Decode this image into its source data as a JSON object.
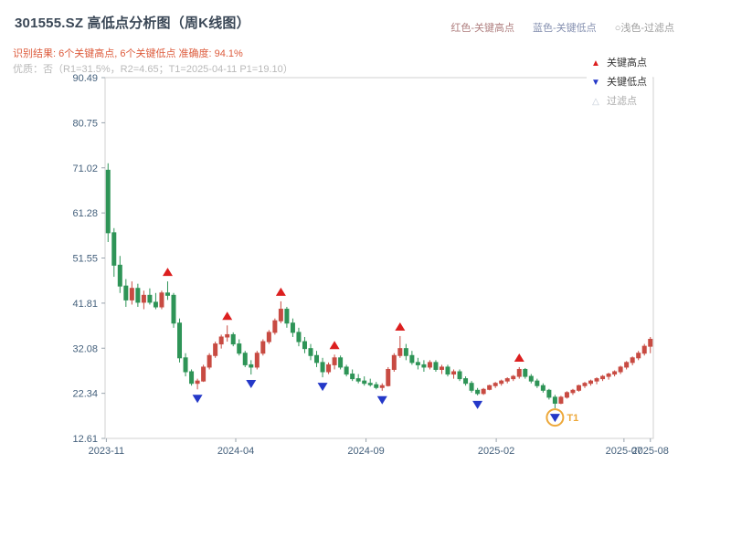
{
  "header": {
    "title": "301555.SZ 高低点分析图（周K线图）",
    "legend_top": [
      {
        "label": "红色-关键高点",
        "color": "#b08080"
      },
      {
        "label": "蓝色-关键低点",
        "color": "#8590b0"
      },
      {
        "label": "○浅色-过滤点",
        "color": "#9e9e9e"
      }
    ],
    "result_line": "识别结果: 6个关键高点, 6个关键低点  准确度: 94.1%",
    "quality_line": "优质：否（R1=31.5%，R2=4.65；T1=2025-04-11 P1=19.10）"
  },
  "chart_legend": {
    "items": [
      {
        "label": "关键高点",
        "marker": "▲",
        "color": "#dc1f1f"
      },
      {
        "label": "关键低点",
        "marker": "▼",
        "color": "#2438c8"
      },
      {
        "label": "过滤点",
        "marker": "△",
        "color": "#c2cbd6"
      }
    ]
  },
  "chart_data": {
    "type": "candlestick",
    "title": "301555.SZ 高低点分析图（周K线图）",
    "ylim": [
      12.61,
      90.49
    ],
    "y_ticks": [
      90.49,
      80.75,
      71.02,
      61.28,
      51.55,
      41.81,
      32.08,
      22.34,
      12.61
    ],
    "x_ticks": [
      "2023-11",
      "2024-04",
      "2024-09",
      "2025-02",
      "2025-07",
      "2025-08"
    ],
    "grid": false,
    "colors": {
      "up": "#c84b42",
      "down": "#2e9457",
      "key_high": "#dc1f1f",
      "key_low": "#2438c8",
      "filtered": "#c2cbd6",
      "t1": "#eda83a",
      "axis": "#44607c",
      "border": "#d0d0d0"
    },
    "columns": [
      "date",
      "open",
      "high",
      "low",
      "close"
    ],
    "candles": [
      [
        "2023-11-03",
        70.5,
        72.0,
        55.0,
        57.0
      ],
      [
        "2023-11-10",
        57.0,
        58.0,
        47.5,
        50.0
      ],
      [
        "2023-11-17",
        50.0,
        52.0,
        44.0,
        45.5
      ],
      [
        "2023-11-24",
        45.5,
        47.0,
        41.0,
        42.5
      ],
      [
        "2023-12-01",
        42.5,
        46.5,
        41.5,
        45.0
      ],
      [
        "2023-12-08",
        45.0,
        46.0,
        41.0,
        42.0
      ],
      [
        "2023-12-15",
        42.0,
        44.5,
        40.5,
        43.5
      ],
      [
        "2023-12-22",
        43.5,
        45.0,
        41.5,
        42.0
      ],
      [
        "2023-12-29",
        42.0,
        44.0,
        40.5,
        41.0
      ],
      [
        "2024-01-05",
        41.0,
        44.5,
        40.5,
        44.0
      ],
      [
        "2024-01-12",
        44.0,
        46.5,
        42.5,
        43.5
      ],
      [
        "2024-01-19",
        43.5,
        44.0,
        36.5,
        37.5
      ],
      [
        "2024-01-26",
        37.5,
        38.5,
        29.0,
        30.0
      ],
      [
        "2024-02-02",
        30.0,
        31.0,
        26.0,
        27.0
      ],
      [
        "2024-02-09",
        27.0,
        27.5,
        24.0,
        24.5
      ],
      [
        "2024-02-16",
        24.5,
        25.5,
        23.2,
        25.0
      ],
      [
        "2024-02-23",
        25.0,
        28.5,
        24.8,
        28.0
      ],
      [
        "2024-03-01",
        28.0,
        31.0,
        27.5,
        30.5
      ],
      [
        "2024-03-08",
        30.5,
        33.5,
        30.0,
        33.0
      ],
      [
        "2024-03-15",
        33.0,
        35.0,
        32.0,
        34.5
      ],
      [
        "2024-03-22",
        34.5,
        37.0,
        33.5,
        35.0
      ],
      [
        "2024-03-29",
        35.0,
        35.5,
        32.5,
        33.0
      ],
      [
        "2024-04-05",
        33.0,
        34.0,
        30.5,
        31.0
      ],
      [
        "2024-04-12",
        31.0,
        31.5,
        28.0,
        28.5
      ],
      [
        "2024-04-19",
        28.5,
        29.5,
        26.4,
        28.0
      ],
      [
        "2024-04-26",
        28.0,
        31.5,
        27.5,
        31.0
      ],
      [
        "2024-05-03",
        31.0,
        34.0,
        30.5,
        33.5
      ],
      [
        "2024-05-10",
        33.5,
        36.0,
        33.0,
        35.5
      ],
      [
        "2024-05-17",
        35.5,
        38.5,
        35.0,
        38.0
      ],
      [
        "2024-05-24",
        38.0,
        42.2,
        37.5,
        40.5
      ],
      [
        "2024-05-31",
        40.5,
        41.0,
        36.5,
        37.5
      ],
      [
        "2024-06-07",
        37.5,
        38.5,
        34.5,
        35.5
      ],
      [
        "2024-06-14",
        35.5,
        36.5,
        32.5,
        33.5
      ],
      [
        "2024-06-21",
        33.5,
        34.5,
        31.0,
        32.0
      ],
      [
        "2024-06-28",
        32.0,
        33.0,
        29.5,
        30.5
      ],
      [
        "2024-07-05",
        30.5,
        31.5,
        28.0,
        29.0
      ],
      [
        "2024-07-12",
        29.0,
        30.0,
        25.8,
        27.0
      ],
      [
        "2024-07-19",
        27.0,
        29.0,
        26.5,
        28.5
      ],
      [
        "2024-07-26",
        28.5,
        30.7,
        27.5,
        30.0
      ],
      [
        "2024-08-02",
        30.0,
        30.5,
        27.5,
        28.0
      ],
      [
        "2024-08-09",
        28.0,
        28.5,
        26.0,
        26.5
      ],
      [
        "2024-08-16",
        26.5,
        27.5,
        25.0,
        25.5
      ],
      [
        "2024-08-23",
        25.5,
        26.5,
        24.5,
        25.0
      ],
      [
        "2024-08-30",
        25.0,
        26.0,
        24.0,
        24.5
      ],
      [
        "2024-09-06",
        24.5,
        25.5,
        23.8,
        24.2
      ],
      [
        "2024-09-13",
        24.2,
        24.8,
        23.2,
        23.6
      ],
      [
        "2024-09-20",
        23.6,
        24.5,
        22.9,
        24.0
      ],
      [
        "2024-09-27",
        24.0,
        28.0,
        23.8,
        27.5
      ],
      [
        "2024-10-04",
        27.5,
        31.0,
        27.0,
        30.5
      ],
      [
        "2024-10-11",
        30.5,
        34.7,
        30.0,
        32.0
      ],
      [
        "2024-10-18",
        32.0,
        33.0,
        29.5,
        30.5
      ],
      [
        "2024-10-25",
        30.5,
        31.5,
        28.5,
        29.0
      ],
      [
        "2024-11-01",
        29.0,
        30.0,
        27.5,
        28.5
      ],
      [
        "2024-11-08",
        28.5,
        29.5,
        27.0,
        28.0
      ],
      [
        "2024-11-15",
        28.0,
        29.5,
        27.5,
        29.0
      ],
      [
        "2024-11-22",
        29.0,
        29.5,
        27.0,
        27.5
      ],
      [
        "2024-11-29",
        27.5,
        28.5,
        26.5,
        28.0
      ],
      [
        "2024-12-06",
        28.0,
        28.5,
        26.0,
        26.5
      ],
      [
        "2024-12-13",
        26.5,
        27.5,
        25.5,
        27.0
      ],
      [
        "2024-12-20",
        27.0,
        27.5,
        25.0,
        25.5
      ],
      [
        "2024-12-27",
        25.5,
        26.0,
        24.0,
        24.5
      ],
      [
        "2025-01-03",
        24.5,
        25.0,
        22.5,
        23.0
      ],
      [
        "2025-01-10",
        23.0,
        23.5,
        21.9,
        22.3
      ],
      [
        "2025-01-17",
        22.3,
        23.5,
        22.0,
        23.2
      ],
      [
        "2025-01-24",
        23.2,
        24.2,
        23.0,
        24.0
      ],
      [
        "2025-01-31",
        24.0,
        24.8,
        23.5,
        24.5
      ],
      [
        "2025-02-07",
        24.5,
        25.3,
        24.0,
        25.0
      ],
      [
        "2025-02-14",
        25.0,
        25.8,
        24.5,
        25.5
      ],
      [
        "2025-02-21",
        25.5,
        26.3,
        25.0,
        26.0
      ],
      [
        "2025-02-28",
        26.0,
        28.0,
        25.5,
        27.5
      ],
      [
        "2025-03-07",
        27.5,
        27.8,
        25.5,
        26.0
      ],
      [
        "2025-03-14",
        26.0,
        26.5,
        24.5,
        25.0
      ],
      [
        "2025-03-21",
        25.0,
        25.5,
        23.5,
        24.0
      ],
      [
        "2025-03-28",
        24.0,
        24.5,
        22.5,
        23.0
      ],
      [
        "2025-04-04",
        23.0,
        23.3,
        21.0,
        21.5
      ],
      [
        "2025-04-11",
        21.5,
        22.0,
        19.1,
        20.2
      ],
      [
        "2025-04-18",
        20.2,
        21.8,
        20.0,
        21.5
      ],
      [
        "2025-04-25",
        21.5,
        22.8,
        21.2,
        22.5
      ],
      [
        "2025-05-02",
        22.5,
        23.3,
        22.0,
        23.0
      ],
      [
        "2025-05-09",
        23.0,
        24.2,
        22.7,
        24.0
      ],
      [
        "2025-05-16",
        24.0,
        24.8,
        23.5,
        24.5
      ],
      [
        "2025-05-23",
        24.5,
        25.3,
        24.0,
        25.0
      ],
      [
        "2025-05-30",
        25.0,
        25.8,
        24.3,
        25.5
      ],
      [
        "2025-06-06",
        25.5,
        26.3,
        25.0,
        26.0
      ],
      [
        "2025-06-13",
        26.0,
        26.8,
        25.3,
        26.5
      ],
      [
        "2025-06-20",
        26.5,
        27.3,
        26.0,
        27.0
      ],
      [
        "2025-06-27",
        27.0,
        28.3,
        26.5,
        28.0
      ],
      [
        "2025-07-04",
        28.0,
        29.3,
        27.5,
        29.0
      ],
      [
        "2025-07-11",
        29.0,
        30.3,
        28.4,
        30.0
      ],
      [
        "2025-07-18",
        30.0,
        31.5,
        29.5,
        31.0
      ],
      [
        "2025-07-25",
        31.0,
        33.0,
        30.5,
        32.5
      ],
      [
        "2025-08-01",
        32.5,
        34.5,
        31.0,
        34.0
      ]
    ],
    "key_highs": [
      {
        "date": "2024-01-12",
        "price": 46.5
      },
      {
        "date": "2024-03-22",
        "price": 37.0
      },
      {
        "date": "2024-05-24",
        "price": 42.2
      },
      {
        "date": "2024-07-26",
        "price": 30.7
      },
      {
        "date": "2024-10-11",
        "price": 34.7
      },
      {
        "date": "2025-02-28",
        "price": 28.0
      }
    ],
    "key_lows": [
      {
        "date": "2024-02-16",
        "price": 23.2
      },
      {
        "date": "2024-04-19",
        "price": 26.4
      },
      {
        "date": "2024-07-12",
        "price": 25.8
      },
      {
        "date": "2024-09-20",
        "price": 22.9
      },
      {
        "date": "2025-01-10",
        "price": 21.9
      },
      {
        "date": "2025-04-11",
        "price": 19.1
      }
    ],
    "t1_marker": {
      "date": "2025-04-11",
      "price": 19.1,
      "label": "T1"
    }
  }
}
